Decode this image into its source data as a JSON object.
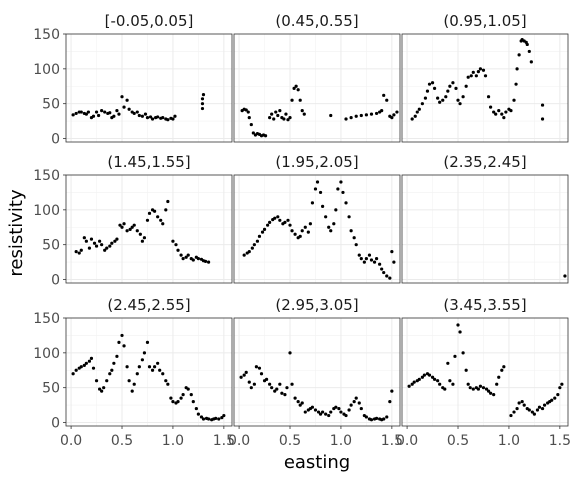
{
  "chart_data": {
    "type": "scatter",
    "facet_layout": "3x3 grid, shared axes",
    "xlabel": "easting",
    "ylabel": "resistivity",
    "xlim": [
      -0.05,
      1.58
    ],
    "ylim": [
      -5,
      150
    ],
    "x_ticks": [
      "0.0",
      "0.5",
      "1.0",
      "1.5"
    ],
    "y_ticks": [
      "0",
      "50",
      "100",
      "150"
    ],
    "grid": true,
    "legend": "none",
    "colors": {
      "points": "#000000",
      "panel_border": "#333333",
      "grid": "#ebebeb"
    },
    "panels": [
      {
        "label": "[-0.05,0.05]",
        "series": [
          {
            "x": [
              0.02,
              0.05,
              0.08,
              0.1,
              0.13,
              0.15,
              0.17,
              0.2,
              0.22,
              0.25,
              0.27,
              0.3,
              0.33,
              0.36,
              0.38,
              0.4,
              0.42,
              0.45,
              0.47,
              0.5,
              0.52,
              0.55,
              0.57,
              0.6,
              0.62,
              0.65,
              0.67,
              0.7,
              0.73,
              0.75,
              0.78,
              0.8,
              0.83,
              0.85,
              0.88,
              0.9,
              0.93,
              0.95,
              0.98,
              1.0,
              1.02
            ],
            "y": [
              34,
              36,
              38,
              38,
              36,
              35,
              38,
              30,
              32,
              38,
              33,
              40,
              38,
              36,
              37,
              30,
              32,
              40,
              35,
              60,
              45,
              55,
              42,
              38,
              36,
              38,
              33,
              32,
              35,
              30,
              31,
              28,
              30,
              31,
              29,
              30,
              28,
              27,
              29,
              28,
              32
            ]
          },
          {
            "x": [
              1.29,
              1.29,
              1.29,
              1.3
            ],
            "y": [
              43,
              50,
              57,
              63
            ]
          }
        ]
      },
      {
        "label": "(0.45,0.55]",
        "series": [
          {
            "x": [
              0.03,
              0.05,
              0.07,
              0.09,
              0.1,
              0.12,
              0.14,
              0.16,
              0.18,
              0.2,
              0.22,
              0.24,
              0.26,
              0.3,
              0.32,
              0.34,
              0.36,
              0.38,
              0.4,
              0.42,
              0.44,
              0.46,
              0.48,
              0.5,
              0.52,
              0.54,
              0.56,
              0.58,
              0.6,
              0.62,
              0.64
            ],
            "y": [
              40,
              42,
              41,
              38,
              30,
              20,
              8,
              5,
              7,
              6,
              4,
              5,
              4,
              30,
              35,
              28,
              38,
              33,
              40,
              30,
              28,
              35,
              27,
              30,
              55,
              72,
              75,
              70,
              55,
              40,
              35
            ]
          },
          {
            "x": [
              0.9
            ],
            "y": [
              33
            ]
          },
          {
            "x": [
              1.05,
              1.1,
              1.15,
              1.2,
              1.25,
              1.3,
              1.35,
              1.38,
              1.4,
              1.42,
              1.45,
              1.48,
              1.5,
              1.52,
              1.55
            ],
            "y": [
              28,
              30,
              32,
              33,
              34,
              35,
              36,
              38,
              40,
              62,
              55,
              32,
              30,
              34,
              38
            ]
          }
        ]
      },
      {
        "label": "(0.95,1.05]",
        "series": [
          {
            "x": [
              0.05,
              0.08,
              0.1,
              0.12,
              0.15,
              0.18,
              0.2,
              0.22,
              0.25,
              0.27,
              0.3,
              0.32,
              0.35,
              0.38,
              0.4,
              0.42,
              0.45,
              0.48,
              0.5,
              0.52,
              0.55,
              0.58,
              0.6,
              0.63,
              0.65,
              0.68,
              0.7,
              0.72,
              0.75,
              0.77,
              0.8,
              0.82,
              0.85,
              0.87,
              0.9,
              0.93,
              0.95,
              0.97,
              1.0,
              1.02
            ],
            "y": [
              28,
              32,
              38,
              42,
              50,
              58,
              68,
              78,
              80,
              72,
              58,
              52,
              55,
              60,
              68,
              75,
              80,
              72,
              55,
              50,
              60,
              75,
              88,
              90,
              95,
              90,
              96,
              100,
              98,
              90,
              60,
              45,
              38,
              35,
              40,
              35,
              30,
              38,
              42,
              40
            ]
          },
          {
            "x": [
              1.05,
              1.07,
              1.08,
              1.1,
              1.12,
              1.13,
              1.15,
              1.17,
              1.18,
              1.2,
              1.22
            ],
            "y": [
              55,
              78,
              100,
              120,
              140,
              142,
              140,
              138,
              135,
              125,
              110
            ]
          },
          {
            "x": [
              1.33,
              1.33
            ],
            "y": [
              28,
              48
            ]
          }
        ]
      },
      {
        "label": "(1.45,1.55]",
        "series": [
          {
            "x": [
              0.05,
              0.08,
              0.1,
              0.13,
              0.15,
              0.18,
              0.2,
              0.23,
              0.25,
              0.28,
              0.3,
              0.33,
              0.35,
              0.38,
              0.4,
              0.43,
              0.45,
              0.48,
              0.5,
              0.52,
              0.55,
              0.58,
              0.6,
              0.62,
              0.65,
              0.68,
              0.7,
              0.72,
              0.75,
              0.77,
              0.8,
              0.82,
              0.85,
              0.88,
              0.9,
              0.93,
              0.95
            ],
            "y": [
              40,
              38,
              42,
              60,
              55,
              45,
              58,
              52,
              48,
              55,
              50,
              42,
              45,
              48,
              52,
              55,
              58,
              78,
              75,
              80,
              70,
              72,
              75,
              78,
              70,
              65,
              55,
              60,
              85,
              95,
              100,
              98,
              90,
              85,
              80,
              100,
              112
            ]
          },
          {
            "x": [
              1.0,
              1.03,
              1.05,
              1.08,
              1.1,
              1.13,
              1.15,
              1.18,
              1.2,
              1.23,
              1.25,
              1.28,
              1.3,
              1.32,
              1.35
            ],
            "y": [
              55,
              50,
              42,
              35,
              30,
              32,
              35,
              30,
              28,
              32,
              30,
              29,
              27,
              26,
              25
            ]
          }
        ]
      },
      {
        "label": "(1.95,2.05]",
        "series": [
          {
            "x": [
              0.05,
              0.08,
              0.1,
              0.13,
              0.15,
              0.18,
              0.2,
              0.23,
              0.25,
              0.28,
              0.3,
              0.33,
              0.35,
              0.38,
              0.4,
              0.43,
              0.45,
              0.48,
              0.5,
              0.52,
              0.55,
              0.58,
              0.6,
              0.62,
              0.65,
              0.68,
              0.7,
              0.72,
              0.75,
              0.77,
              0.8,
              0.82,
              0.85,
              0.88,
              0.9,
              0.93,
              0.95,
              0.97,
              1.0,
              1.02,
              1.05,
              1.08,
              1.1,
              1.13,
              1.15,
              1.18,
              1.2,
              1.23,
              1.25,
              1.28,
              1.3,
              1.33,
              1.35,
              1.38,
              1.4,
              1.42,
              1.45,
              1.48,
              1.5,
              1.52
            ],
            "y": [
              35,
              38,
              40,
              45,
              50,
              55,
              62,
              68,
              72,
              78,
              82,
              86,
              88,
              90,
              85,
              80,
              82,
              85,
              78,
              70,
              65,
              60,
              62,
              70,
              75,
              68,
              80,
              110,
              130,
              140,
              125,
              105,
              90,
              75,
              70,
              80,
              100,
              130,
              140,
              125,
              110,
              90,
              70,
              60,
              50,
              35,
              30,
              25,
              30,
              35,
              28,
              25,
              30,
              22,
              15,
              10,
              5,
              2,
              40,
              25
            ]
          }
        ]
      },
      {
        "label": "(2.35,2.45]",
        "series": [
          {
            "x": [
              1.55
            ],
            "y": [
              5
            ]
          }
        ]
      },
      {
        "label": "(2.45,2.55]",
        "series": [
          {
            "x": [
              0.02,
              0.05,
              0.08,
              0.1,
              0.13,
              0.15,
              0.18,
              0.2,
              0.22,
              0.25,
              0.28,
              0.3,
              0.32,
              0.35,
              0.38,
              0.4,
              0.42,
              0.45,
              0.47,
              0.5,
              0.52,
              0.55,
              0.57,
              0.6,
              0.62,
              0.65,
              0.67,
              0.7,
              0.72,
              0.75,
              0.77,
              0.8,
              0.82,
              0.85,
              0.87,
              0.9,
              0.93,
              0.95,
              0.98,
              1.0,
              1.03,
              1.05,
              1.08,
              1.1,
              1.13,
              1.15,
              1.18,
              1.2,
              1.23,
              1.25,
              1.28,
              1.3,
              1.33,
              1.35,
              1.38,
              1.4,
              1.42,
              1.45,
              1.48,
              1.5
            ],
            "y": [
              70,
              75,
              78,
              80,
              82,
              85,
              88,
              92,
              78,
              60,
              48,
              45,
              50,
              60,
              70,
              75,
              85,
              95,
              115,
              125,
              110,
              80,
              60,
              45,
              55,
              70,
              80,
              90,
              100,
              115,
              80,
              75,
              80,
              85,
              75,
              70,
              60,
              55,
              35,
              30,
              28,
              30,
              35,
              40,
              50,
              48,
              40,
              30,
              20,
              12,
              8,
              5,
              6,
              5,
              4,
              5,
              6,
              5,
              7,
              10
            ]
          }
        ]
      },
      {
        "label": "(2.95,3.05]",
        "series": [
          {
            "x": [
              0.02,
              0.05,
              0.07,
              0.1,
              0.12,
              0.15,
              0.17,
              0.2,
              0.22,
              0.25,
              0.27,
              0.3,
              0.32,
              0.35,
              0.37,
              0.4,
              0.42,
              0.45,
              0.47,
              0.5,
              0.52,
              0.55,
              0.58,
              0.6,
              0.62,
              0.65,
              0.68,
              0.7,
              0.72,
              0.75,
              0.78,
              0.8,
              0.82,
              0.85,
              0.88,
              0.9,
              0.93,
              0.95,
              0.98,
              1.0,
              1.03,
              1.05,
              1.08,
              1.1,
              1.13,
              1.15,
              1.18,
              1.2,
              1.23,
              1.25,
              1.28,
              1.3,
              1.33,
              1.35,
              1.38,
              1.4,
              1.42,
              1.45,
              1.48,
              1.5
            ],
            "y": [
              65,
              68,
              72,
              58,
              50,
              55,
              80,
              78,
              70,
              60,
              62,
              55,
              50,
              45,
              48,
              55,
              42,
              40,
              50,
              100,
              55,
              35,
              30,
              25,
              28,
              15,
              18,
              20,
              22,
              18,
              15,
              12,
              15,
              12,
              10,
              15,
              20,
              22,
              20,
              15,
              12,
              10,
              18,
              25,
              30,
              35,
              28,
              20,
              10,
              8,
              5,
              4,
              5,
              6,
              5,
              4,
              5,
              8,
              30,
              45
            ]
          }
        ]
      },
      {
        "label": "(3.45,3.55]",
        "series": [
          {
            "x": [
              0.02,
              0.05,
              0.07,
              0.1,
              0.12,
              0.15,
              0.17,
              0.2,
              0.22,
              0.25,
              0.27,
              0.3,
              0.32,
              0.35,
              0.37,
              0.4,
              0.42,
              0.45,
              0.47,
              0.5,
              0.52,
              0.55,
              0.58,
              0.6,
              0.62,
              0.65,
              0.68,
              0.7,
              0.72,
              0.75,
              0.78,
              0.8,
              0.82,
              0.85,
              0.88,
              0.9,
              0.93,
              0.95
            ],
            "y": [
              52,
              55,
              58,
              60,
              62,
              65,
              68,
              70,
              68,
              65,
              62,
              60,
              55,
              50,
              48,
              85,
              60,
              55,
              95,
              140,
              130,
              100,
              75,
              55,
              50,
              48,
              50,
              48,
              52,
              50,
              48,
              45,
              42,
              40,
              55,
              65,
              75,
              80
            ]
          },
          {
            "x": [
              1.02,
              1.05,
              1.08,
              1.1,
              1.13,
              1.15,
              1.18,
              1.2,
              1.23,
              1.25,
              1.28,
              1.3,
              1.33,
              1.35,
              1.38,
              1.4,
              1.42,
              1.45,
              1.48,
              1.5,
              1.52
            ],
            "y": [
              10,
              15,
              20,
              28,
              30,
              25,
              20,
              18,
              15,
              12,
              18,
              22,
              20,
              25,
              28,
              30,
              32,
              35,
              40,
              50,
              55
            ]
          }
        ]
      }
    ]
  }
}
